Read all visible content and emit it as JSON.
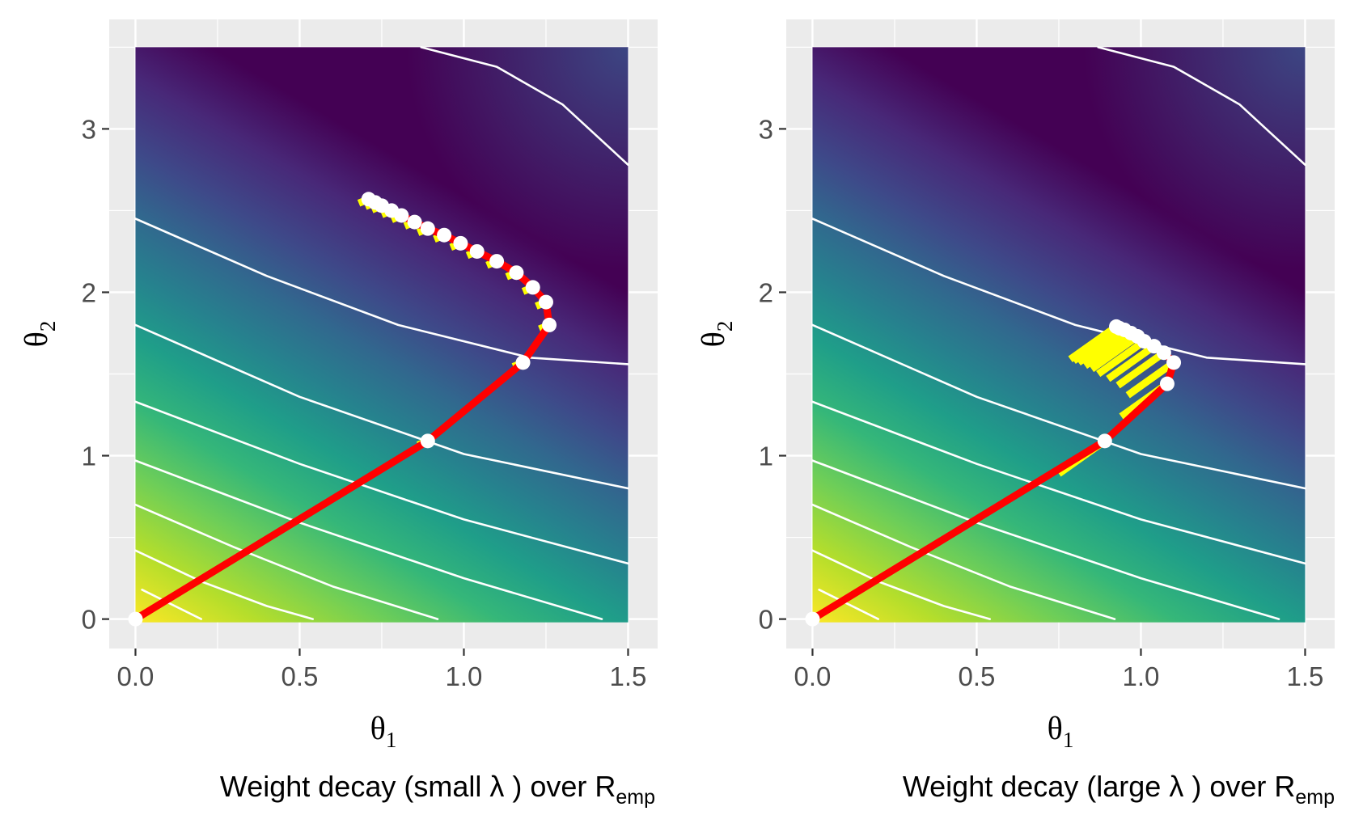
{
  "chart_data": [
    {
      "type": "contour",
      "title": "Weight decay (small  λ ) over R",
      "title_subscript": "emp",
      "xlabel": "θ",
      "xlabel_subscript": "1",
      "ylabel": "θ",
      "ylabel_subscript": "2",
      "xlim": [
        -0.08,
        1.59
      ],
      "ylim": [
        -0.18,
        3.67
      ],
      "xticks": [
        0,
        0.5,
        1,
        1.5
      ],
      "xtick_labels": [
        "0.0",
        "0.5",
        "1.0",
        "1.5"
      ],
      "yticks": [
        0,
        1,
        2,
        3
      ],
      "ytick_labels": [
        "0",
        "1",
        "2",
        "3"
      ],
      "heatmap_extent": {
        "x": [
          0,
          1.5
        ],
        "y": [
          -0.02,
          3.5
        ]
      },
      "colormap": "viridis",
      "panel_background": "#ebebeb",
      "grid_color": "#ffffff",
      "contour_color": "#ffffff",
      "contours": [
        [
          [
            0.02,
            0.18
          ],
          [
            0.2,
            0.0
          ]
        ],
        [
          [
            0.0,
            0.42
          ],
          [
            0.2,
            0.23
          ],
          [
            0.4,
            0.08
          ],
          [
            0.54,
            0.0
          ]
        ],
        [
          [
            0.0,
            0.7
          ],
          [
            0.3,
            0.44
          ],
          [
            0.6,
            0.2
          ],
          [
            0.92,
            0.0
          ]
        ],
        [
          [
            0.0,
            0.97
          ],
          [
            0.5,
            0.59
          ],
          [
            1.0,
            0.25
          ],
          [
            1.42,
            0.0
          ]
        ],
        [
          [
            0.0,
            1.33
          ],
          [
            0.5,
            0.95
          ],
          [
            1.0,
            0.61
          ],
          [
            1.5,
            0.34
          ]
        ],
        [
          [
            0.0,
            1.8
          ],
          [
            0.5,
            1.36
          ],
          [
            1.0,
            1.01
          ],
          [
            1.5,
            0.8
          ]
        ],
        [
          [
            0.0,
            2.45
          ],
          [
            0.4,
            2.1
          ],
          [
            0.8,
            1.8
          ],
          [
            1.2,
            1.6
          ],
          [
            1.5,
            1.56
          ]
        ],
        [
          [
            0.87,
            3.5
          ],
          [
            1.1,
            3.38
          ],
          [
            1.3,
            3.15
          ],
          [
            1.5,
            2.78
          ]
        ]
      ],
      "path_color": "#ff0000",
      "gradient_color": "#ffff00",
      "point_color": "#ffffff",
      "path": [
        [
          0.0,
          0.0
        ],
        [
          0.89,
          1.09
        ],
        [
          1.18,
          1.57
        ],
        [
          1.26,
          1.8
        ],
        [
          1.25,
          1.94
        ],
        [
          1.21,
          2.03
        ],
        [
          1.16,
          2.12
        ],
        [
          1.1,
          2.19
        ],
        [
          1.04,
          2.25
        ],
        [
          0.99,
          2.3
        ],
        [
          0.94,
          2.35
        ],
        [
          0.89,
          2.39
        ],
        [
          0.85,
          2.43
        ],
        [
          0.81,
          2.47
        ],
        [
          0.78,
          2.5
        ],
        [
          0.75,
          2.53
        ],
        [
          0.73,
          2.55
        ],
        [
          0.71,
          2.57
        ]
      ],
      "gradient_offset": [
        -0.03,
        -0.025
      ]
    },
    {
      "type": "contour",
      "title": "Weight decay (large  λ ) over R",
      "title_subscript": "emp",
      "xlabel": "θ",
      "xlabel_subscript": "1",
      "ylabel": "θ",
      "ylabel_subscript": "2",
      "xlim": [
        -0.08,
        1.59
      ],
      "ylim": [
        -0.18,
        3.67
      ],
      "xticks": [
        0,
        0.5,
        1,
        1.5
      ],
      "xtick_labels": [
        "0.0",
        "0.5",
        "1.0",
        "1.5"
      ],
      "yticks": [
        0,
        1,
        2,
        3
      ],
      "ytick_labels": [
        "0",
        "1",
        "2",
        "3"
      ],
      "heatmap_extent": {
        "x": [
          0,
          1.5
        ],
        "y": [
          -0.02,
          3.5
        ]
      },
      "colormap": "viridis",
      "panel_background": "#ebebeb",
      "grid_color": "#ffffff",
      "contour_color": "#ffffff",
      "contours": [
        [
          [
            0.02,
            0.18
          ],
          [
            0.2,
            0.0
          ]
        ],
        [
          [
            0.0,
            0.42
          ],
          [
            0.2,
            0.23
          ],
          [
            0.4,
            0.08
          ],
          [
            0.54,
            0.0
          ]
        ],
        [
          [
            0.0,
            0.7
          ],
          [
            0.3,
            0.44
          ],
          [
            0.6,
            0.2
          ],
          [
            0.92,
            0.0
          ]
        ],
        [
          [
            0.0,
            0.97
          ],
          [
            0.5,
            0.59
          ],
          [
            1.0,
            0.25
          ],
          [
            1.42,
            0.0
          ]
        ],
        [
          [
            0.0,
            1.33
          ],
          [
            0.5,
            0.95
          ],
          [
            1.0,
            0.61
          ],
          [
            1.5,
            0.34
          ]
        ],
        [
          [
            0.0,
            1.8
          ],
          [
            0.5,
            1.36
          ],
          [
            1.0,
            1.01
          ],
          [
            1.5,
            0.8
          ]
        ],
        [
          [
            0.0,
            2.45
          ],
          [
            0.4,
            2.1
          ],
          [
            0.8,
            1.8
          ],
          [
            1.2,
            1.6
          ],
          [
            1.5,
            1.56
          ]
        ],
        [
          [
            0.87,
            3.5
          ],
          [
            1.1,
            3.38
          ],
          [
            1.3,
            3.15
          ],
          [
            1.5,
            2.78
          ]
        ]
      ],
      "path_color": "#ff0000",
      "gradient_color": "#ffff00",
      "point_color": "#ffffff",
      "path": [
        [
          0.0,
          0.0
        ],
        [
          0.89,
          1.09
        ],
        [
          1.08,
          1.44
        ],
        [
          1.1,
          1.57
        ],
        [
          1.07,
          1.63
        ],
        [
          1.04,
          1.67
        ],
        [
          1.01,
          1.7
        ],
        [
          0.99,
          1.73
        ],
        [
          0.97,
          1.75
        ],
        [
          0.95,
          1.77
        ],
        [
          0.935,
          1.78
        ],
        [
          0.925,
          1.79
        ]
      ],
      "gradient_offset": [
        -0.14,
        -0.2
      ]
    }
  ]
}
